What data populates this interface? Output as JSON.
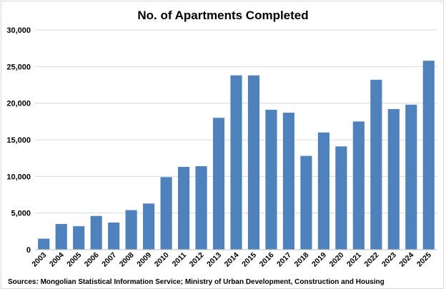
{
  "chart_data": {
    "type": "bar",
    "title": "No. of Apartments Completed",
    "source": "Sources: Mongolian Statistical Information Service; Ministry of Urban Development, Construction and Housing",
    "categories": [
      "2003",
      "2004",
      "2005",
      "2006",
      "2007",
      "2008",
      "2009",
      "2010",
      "2011",
      "2012",
      "2013",
      "2014",
      "2015",
      "2016",
      "2017",
      "2018",
      "2019",
      "2020",
      "2021",
      "2022",
      "2023",
      "2024",
      "2025"
    ],
    "values": [
      1500,
      3500,
      3200,
      4600,
      3700,
      5400,
      6300,
      9900,
      11300,
      11400,
      18000,
      23800,
      23800,
      19100,
      18700,
      12800,
      16000,
      14100,
      17500,
      23200,
      19200,
      19800,
      25800
    ],
    "ylim": [
      0,
      30000
    ],
    "yticks": [
      0,
      5000,
      10000,
      15000,
      20000,
      25000,
      30000
    ],
    "ytick_labels": [
      "0",
      "5,000",
      "10,000",
      "15,000",
      "20,000",
      "25,000",
      "30,000"
    ],
    "bar_color": "#4f81bd",
    "grid": true,
    "legend": "none",
    "xlabel": "",
    "ylabel": ""
  }
}
